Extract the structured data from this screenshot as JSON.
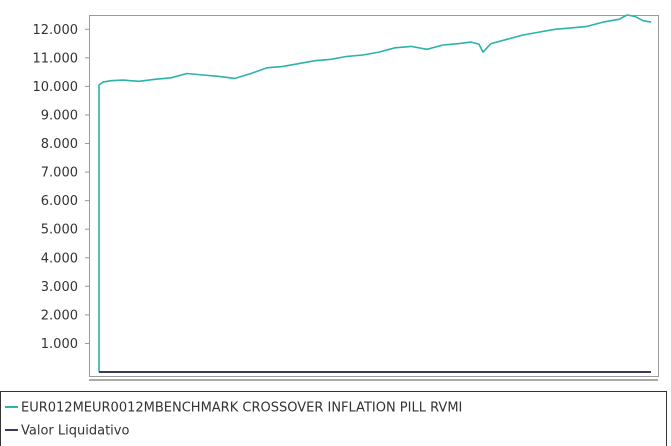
{
  "chart_data": {
    "type": "line",
    "title": "",
    "xlabel": "",
    "ylabel": "",
    "ylim": [
      0,
      12500
    ],
    "yticks": [
      {
        "value": 1000,
        "label": "1.000"
      },
      {
        "value": 2000,
        "label": "2.000"
      },
      {
        "value": 3000,
        "label": "3.000"
      },
      {
        "value": 4000,
        "label": "4.000"
      },
      {
        "value": 5000,
        "label": "5.000"
      },
      {
        "value": 6000,
        "label": "6.000"
      },
      {
        "value": 7000,
        "label": "7.000"
      },
      {
        "value": 8000,
        "label": "8.000"
      },
      {
        "value": 9000,
        "label": "9.000"
      },
      {
        "value": 10000,
        "label": "10.000"
      },
      {
        "value": 11000,
        "label": "11.000"
      },
      {
        "value": 12000,
        "label": "12.000"
      }
    ],
    "grid": false,
    "legend_placement": "bottom",
    "x_unit": "time index (no labels shown)",
    "series": [
      {
        "name": "EUR012MEUR0012MBENCHMARK CROSSOVER INFLATION PILL RVMI",
        "color": "#2bb3a9",
        "points": [
          [
            0,
            0
          ],
          [
            0,
            10050
          ],
          [
            1,
            10150
          ],
          [
            3,
            10200
          ],
          [
            6,
            10220
          ],
          [
            10,
            10180
          ],
          [
            14,
            10250
          ],
          [
            18,
            10300
          ],
          [
            22,
            10450
          ],
          [
            26,
            10400
          ],
          [
            30,
            10350
          ],
          [
            34,
            10280
          ],
          [
            38,
            10450
          ],
          [
            42,
            10650
          ],
          [
            46,
            10700
          ],
          [
            50,
            10800
          ],
          [
            54,
            10900
          ],
          [
            58,
            10950
          ],
          [
            62,
            11050
          ],
          [
            66,
            11100
          ],
          [
            70,
            11200
          ],
          [
            74,
            11350
          ],
          [
            78,
            11400
          ],
          [
            82,
            11300
          ],
          [
            86,
            11450
          ],
          [
            90,
            11500
          ],
          [
            93,
            11550
          ],
          [
            95,
            11480
          ],
          [
            96,
            11200
          ],
          [
            98,
            11500
          ],
          [
            102,
            11650
          ],
          [
            106,
            11800
          ],
          [
            110,
            11900
          ],
          [
            114,
            12000
          ],
          [
            118,
            12050
          ],
          [
            122,
            12100
          ],
          [
            126,
            12250
          ],
          [
            130,
            12350
          ],
          [
            132,
            12500
          ],
          [
            134,
            12450
          ],
          [
            136,
            12300
          ],
          [
            138,
            12250
          ]
        ]
      },
      {
        "name": "Valor Liquidativo",
        "color": "#3d3a5c",
        "points": [
          [
            0,
            0
          ],
          [
            138,
            0
          ]
        ]
      }
    ]
  }
}
